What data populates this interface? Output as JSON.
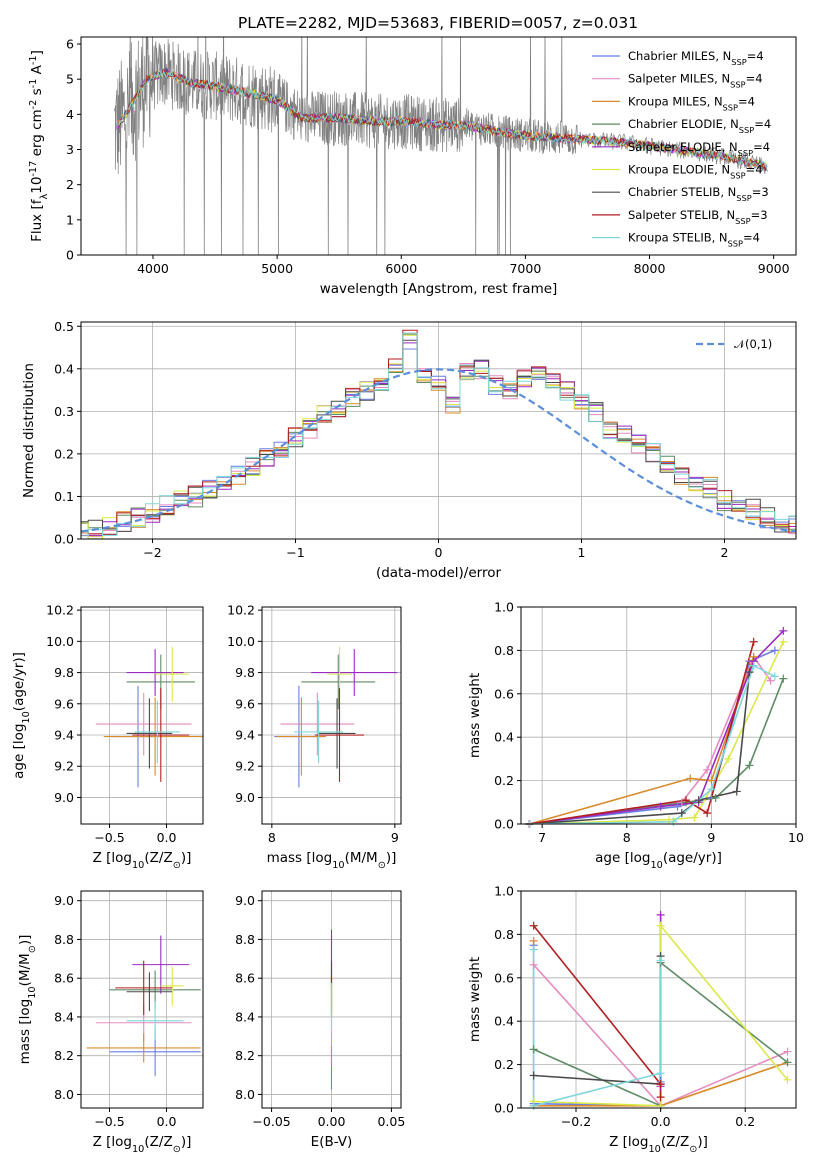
{
  "title": "PLATE=2282, MJD=53683, FIBERID=0057, z=0.031",
  "chart_data": [
    {
      "type": "line",
      "id": "spectrum",
      "xlabel": "wavelength [Angstrom, rest frame]",
      "ylabel": "Flux [f$_\\lambda$10$^{-17}$ erg cm$^{-2}$ s$^{-1}$ A$^{-1}$]",
      "xlim": [
        3420,
        9180
      ],
      "ylim": [
        0,
        6.2
      ],
      "xticks": [
        4000,
        5000,
        6000,
        7000,
        8000,
        9000
      ],
      "yticks": [
        0,
        1,
        2,
        3,
        4,
        5,
        6
      ],
      "legend": "top-right",
      "data_color": "#808080",
      "data_range": [
        3690,
        7420
      ],
      "continuum_knots": [
        [
          3700,
          3.6
        ],
        [
          3800,
          4.1
        ],
        [
          3950,
          5.0
        ],
        [
          4100,
          5.2
        ],
        [
          4300,
          4.9
        ],
        [
          4500,
          4.8
        ],
        [
          4800,
          4.6
        ],
        [
          5000,
          4.4
        ],
        [
          5200,
          3.9
        ],
        [
          5500,
          3.9
        ],
        [
          5800,
          3.8
        ],
        [
          6000,
          3.8
        ],
        [
          6300,
          3.7
        ],
        [
          6500,
          3.7
        ],
        [
          6800,
          3.5
        ],
        [
          7000,
          3.4
        ],
        [
          7400,
          3.3
        ],
        [
          7800,
          3.2
        ],
        [
          8200,
          3.0
        ],
        [
          8600,
          2.8
        ],
        [
          8950,
          2.5
        ]
      ],
      "series": [
        {
          "name": "Chabrier MILES, N$_{SSP}$=4",
          "color": "#6c7fe0"
        },
        {
          "name": "Salpeter MILES, N$_{SSP}$=4",
          "color": "#e68bbf"
        },
        {
          "name": "Kroupa MILES, N$_{SSP}$=4",
          "color": "#d98a2b"
        },
        {
          "name": "Chabrier ELODIE, N$_{SSP}$=4",
          "color": "#5e8c64"
        },
        {
          "name": "Salpeter ELODIE, N$_{SSP}$=4",
          "color": "#9a2bc0"
        },
        {
          "name": "Kroupa ELODIE, N$_{SSP}$=4",
          "color": "#dbe84a"
        },
        {
          "name": "Chabrier STELIB, N$_{SSP}$=3",
          "color": "#4a4a4a"
        },
        {
          "name": "Salpeter STELIB, N$_{SSP}$=3",
          "color": "#b21e1e"
        },
        {
          "name": "Kroupa STELIB, N$_{SSP}$=4",
          "color": "#7fd6dc"
        }
      ]
    },
    {
      "type": "line",
      "id": "residuals",
      "xlabel": "(data-model)/error",
      "ylabel": "Normed distribution",
      "xlim": [
        -2.5,
        2.5
      ],
      "ylim": [
        0,
        0.51
      ],
      "xticks": [
        -2,
        -1,
        0,
        1,
        2
      ],
      "yticks": [
        0.0,
        0.1,
        0.2,
        0.3,
        0.4,
        0.5
      ],
      "grid": true,
      "legend": "top-right",
      "normal_label": "$\\mathcal{N}(0,1)$",
      "normal_color": "#5b8fd9",
      "bin_width": 0.1,
      "histogram": [
        0.02,
        0.02,
        0.03,
        0.04,
        0.05,
        0.06,
        0.08,
        0.09,
        0.1,
        0.12,
        0.13,
        0.15,
        0.17,
        0.19,
        0.21,
        0.24,
        0.26,
        0.29,
        0.31,
        0.33,
        0.35,
        0.36,
        0.4,
        0.47,
        0.38,
        0.37,
        0.32,
        0.39,
        0.4,
        0.36,
        0.35,
        0.38,
        0.4,
        0.37,
        0.35,
        0.33,
        0.3,
        0.26,
        0.25,
        0.22,
        0.2,
        0.18,
        0.15,
        0.13,
        0.12,
        0.09,
        0.08,
        0.07,
        0.05,
        0.04,
        0.03
      ]
    },
    {
      "type": "scatter",
      "id": "age_vs_Z",
      "xlabel": "Z [log$_{10}$(Z/Z$_\\odot$)]",
      "ylabel": "age  [log$_{10}$(age/yr)]",
      "xlim": [
        -0.75,
        0.32
      ],
      "ylim": [
        8.83,
        10.22
      ],
      "xticks": [
        -0.5,
        0.0
      ],
      "yticks": [
        9.0,
        9.2,
        9.4,
        9.6,
        9.8,
        10.0,
        10.2
      ],
      "grid": true,
      "crosses": [
        {
          "x": -0.25,
          "y": 9.39,
          "xerr": 0.22,
          "yerr": 0.65,
          "s": 0
        },
        {
          "x": -0.2,
          "y": 9.47,
          "xerr": 0.42,
          "yerr": 0.4,
          "s": 1
        },
        {
          "x": -0.1,
          "y": 9.39,
          "xerr": 0.45,
          "yerr": 0.5,
          "s": 2
        },
        {
          "x": -0.05,
          "y": 9.74,
          "xerr": 0.3,
          "yerr": 0.35,
          "s": 3
        },
        {
          "x": -0.1,
          "y": 9.8,
          "xerr": 0.25,
          "yerr": 0.3,
          "s": 4
        },
        {
          "x": 0.05,
          "y": 9.79,
          "xerr": 0.15,
          "yerr": 0.35,
          "s": 5
        },
        {
          "x": -0.15,
          "y": 9.41,
          "xerr": 0.2,
          "yerr": 0.45,
          "s": 6
        },
        {
          "x": -0.05,
          "y": 9.4,
          "xerr": 0.25,
          "yerr": 0.6,
          "s": 7
        },
        {
          "x": -0.08,
          "y": 9.42,
          "xerr": 0.2,
          "yerr": 0.4,
          "s": 8
        }
      ]
    },
    {
      "type": "scatter",
      "id": "age_vs_mass",
      "xlabel": "mass [log$_{10}$(M/M$_\\odot$)]",
      "xlim": [
        7.92,
        9.05
      ],
      "ylim": [
        8.83,
        10.22
      ],
      "xticks": [
        8,
        9
      ],
      "yticks": [
        9.0,
        9.2,
        9.4,
        9.6,
        9.8,
        10.0,
        10.2
      ],
      "grid": true,
      "crosses": [
        {
          "x": 8.22,
          "y": 9.39,
          "xerr": 0.2,
          "yerr": 0.65,
          "s": 0
        },
        {
          "x": 8.37,
          "y": 9.47,
          "xerr": 0.3,
          "yerr": 0.4,
          "s": 1
        },
        {
          "x": 8.24,
          "y": 9.39,
          "xerr": 0.2,
          "yerr": 0.5,
          "s": 2
        },
        {
          "x": 8.54,
          "y": 9.74,
          "xerr": 0.3,
          "yerr": 0.35,
          "s": 3
        },
        {
          "x": 8.67,
          "y": 9.8,
          "xerr": 0.35,
          "yerr": 0.3,
          "s": 4
        },
        {
          "x": 8.55,
          "y": 9.79,
          "xerr": 0.1,
          "yerr": 0.35,
          "s": 5
        },
        {
          "x": 8.53,
          "y": 9.41,
          "xerr": 0.15,
          "yerr": 0.45,
          "s": 6
        },
        {
          "x": 8.55,
          "y": 9.4,
          "xerr": 0.2,
          "yerr": 0.6,
          "s": 7
        },
        {
          "x": 8.38,
          "y": 9.42,
          "xerr": 0.2,
          "yerr": 0.4,
          "s": 8
        }
      ]
    },
    {
      "type": "line",
      "id": "mass_weight_vs_age",
      "xlabel": "age  [log$_{10}$(age/yr)]",
      "ylabel": "mass weight",
      "xlim": [
        6.75,
        10.0
      ],
      "ylim": [
        0,
        1.0
      ],
      "xticks": [
        7,
        8,
        9,
        10
      ],
      "yticks": [
        0.0,
        0.2,
        0.4,
        0.6,
        0.8,
        1.0
      ],
      "grid": true,
      "series": [
        {
          "s": 0,
          "x": [
            6.85,
            8.6,
            9.0,
            9.45,
            9.75
          ],
          "y": [
            0.0,
            0.08,
            0.12,
            0.75,
            0.8
          ]
        },
        {
          "s": 1,
          "x": [
            6.85,
            8.65,
            8.95,
            9.5,
            9.7
          ],
          "y": [
            0.0,
            0.1,
            0.25,
            0.77,
            0.66
          ]
        },
        {
          "s": 2,
          "x": [
            6.85,
            8.75,
            9.0,
            9.5
          ],
          "y": [
            0.0,
            0.21,
            0.2,
            0.77
          ]
        },
        {
          "s": 3,
          "x": [
            6.85,
            8.7,
            9.05,
            9.45,
            9.85
          ],
          "y": [
            0.0,
            0.1,
            0.12,
            0.27,
            0.67
          ]
        },
        {
          "s": 4,
          "x": [
            6.85,
            8.4,
            8.85,
            9.5,
            9.85
          ],
          "y": [
            0.0,
            0.08,
            0.1,
            0.75,
            0.89
          ]
        },
        {
          "s": 5,
          "x": [
            6.85,
            8.5,
            8.8,
            9.2,
            9.85
          ],
          "y": [
            0.0,
            0.02,
            0.03,
            0.3,
            0.84
          ]
        },
        {
          "s": 6,
          "x": [
            6.85,
            8.65,
            8.85,
            9.3,
            9.45
          ],
          "y": [
            0.0,
            0.05,
            0.11,
            0.15,
            0.7
          ]
        },
        {
          "s": 7,
          "x": [
            6.85,
            8.7,
            8.95,
            9.5
          ],
          "y": [
            0.0,
            0.11,
            0.05,
            0.84
          ]
        },
        {
          "s": 8,
          "x": [
            6.85,
            8.55,
            9.0,
            9.5,
            9.75
          ],
          "y": [
            0.0,
            0.01,
            0.16,
            0.73,
            0.68
          ]
        }
      ]
    },
    {
      "type": "scatter",
      "id": "mass_vs_Z",
      "xlabel": "Z [log$_{10}$(Z/Z$_\\odot$)]",
      "ylabel": "mass [log$_{10}$(M/M$_\\odot$)]",
      "xlim": [
        -0.75,
        0.32
      ],
      "ylim": [
        7.93,
        9.05
      ],
      "xticks": [
        -0.5,
        0.0
      ],
      "yticks": [
        8.0,
        8.2,
        8.4,
        8.6,
        8.8,
        9.0
      ],
      "grid": true,
      "crosses": [
        {
          "x": -0.1,
          "y": 8.22,
          "xerr": 0.4,
          "yerr": 0.25,
          "s": 0
        },
        {
          "x": -0.2,
          "y": 8.37,
          "xerr": 0.42,
          "yerr": 0.2,
          "s": 1
        },
        {
          "x": -0.2,
          "y": 8.24,
          "xerr": 0.5,
          "yerr": 0.15,
          "s": 2
        },
        {
          "x": -0.1,
          "y": 8.54,
          "xerr": 0.4,
          "yerr": 0.2,
          "s": 3
        },
        {
          "x": -0.05,
          "y": 8.67,
          "xerr": 0.25,
          "yerr": 0.3,
          "s": 4
        },
        {
          "x": 0.05,
          "y": 8.56,
          "xerr": 0.1,
          "yerr": 0.2,
          "s": 5
        },
        {
          "x": -0.15,
          "y": 8.53,
          "xerr": 0.2,
          "yerr": 0.2,
          "s": 6
        },
        {
          "x": -0.2,
          "y": 8.55,
          "xerr": 0.25,
          "yerr": 0.28,
          "s": 7
        },
        {
          "x": -0.1,
          "y": 8.38,
          "xerr": 0.25,
          "yerr": 0.2,
          "s": 8
        }
      ]
    },
    {
      "type": "scatter",
      "id": "mass_vs_ebv",
      "xlabel": "E(B-V)",
      "xlim": [
        -0.058,
        0.058
      ],
      "ylim": [
        7.93,
        9.05
      ],
      "xticks": [
        -0.05,
        0.0,
        0.05
      ],
      "yticks": [
        8.0,
        8.2,
        8.4,
        8.6,
        8.8,
        9.0
      ],
      "grid": true,
      "crosses": [
        {
          "x": 0.0,
          "y": 8.1,
          "xerr": 0.0,
          "yerr": 0.15,
          "s": 0
        },
        {
          "x": 0.0,
          "y": 8.3,
          "xerr": 0.0,
          "yerr": 0.25,
          "s": 1
        },
        {
          "x": 0.0,
          "y": 8.2,
          "xerr": 0.0,
          "yerr": 0.1,
          "s": 2
        },
        {
          "x": 0.0,
          "y": 8.55,
          "xerr": 0.0,
          "yerr": 0.25,
          "s": 3
        },
        {
          "x": 0.0,
          "y": 8.7,
          "xerr": 0.0,
          "yerr": 0.3,
          "s": 4
        },
        {
          "x": 0.0,
          "y": 8.55,
          "xerr": 0.0,
          "yerr": 0.2,
          "s": 5
        },
        {
          "x": 0.0,
          "y": 8.5,
          "xerr": 0.0,
          "yerr": 0.2,
          "s": 6
        },
        {
          "x": 0.0,
          "y": 8.55,
          "xerr": 0.0,
          "yerr": 0.28,
          "s": 7
        },
        {
          "x": 0.0,
          "y": 8.45,
          "xerr": 0.0,
          "yerr": 0.25,
          "s": 8
        }
      ]
    },
    {
      "type": "line",
      "id": "mass_weight_vs_Z",
      "xlabel": "Z [log$_{10}$(Z/Z$_\\odot$)]",
      "ylabel": "mass weight",
      "xlim": [
        -0.33,
        0.32
      ],
      "ylim": [
        0,
        1.0
      ],
      "xticks": [
        -0.2,
        0.0,
        0.2
      ],
      "yticks": [
        0.0,
        0.2,
        0.4,
        0.6,
        0.8,
        1.0
      ],
      "grid": true,
      "series": [
        {
          "s": 0,
          "x": [
            -0.3,
            -0.3,
            0.0,
            0.0
          ],
          "y": [
            0.75,
            0.02,
            0.01,
            0.12
          ]
        },
        {
          "s": 1,
          "x": [
            -0.3,
            0.0,
            0.3
          ],
          "y": [
            0.66,
            0.01,
            0.26
          ]
        },
        {
          "s": 2,
          "x": [
            -0.3,
            -0.3,
            0.0,
            0.3
          ],
          "y": [
            0.77,
            0.01,
            0.01,
            0.21
          ]
        },
        {
          "s": 3,
          "x": [
            -0.3,
            0.0,
            0.0,
            0.3
          ],
          "y": [
            0.27,
            0.01,
            0.67,
            0.21
          ]
        },
        {
          "s": 4,
          "x": [
            0.0,
            0.0
          ],
          "y": [
            0.89,
            0.1
          ]
        },
        {
          "s": 5,
          "x": [
            -0.3,
            0.0,
            0.0,
            0.3
          ],
          "y": [
            0.03,
            0.01,
            0.84,
            0.13
          ]
        },
        {
          "s": 6,
          "x": [
            -0.3,
            0.0,
            0.0
          ],
          "y": [
            0.15,
            0.11,
            0.7
          ]
        },
        {
          "s": 7,
          "x": [
            -0.3,
            0.0,
            0.0
          ],
          "y": [
            0.84,
            0.11,
            0.05
          ]
        },
        {
          "s": 8,
          "x": [
            -0.3,
            -0.3,
            0.0,
            0.0
          ],
          "y": [
            0.73,
            0.01,
            0.16,
            0.68
          ]
        }
      ]
    }
  ]
}
